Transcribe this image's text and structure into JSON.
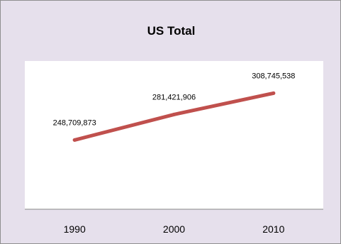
{
  "chart_data": {
    "type": "line",
    "title": "US Total",
    "categories": [
      "1990",
      "2000",
      "2010"
    ],
    "series": [
      {
        "values": [
          248709873,
          281421906,
          308745538
        ],
        "color": "#c0504d"
      }
    ],
    "data_labels": [
      "248,709,873",
      "281,421,906",
      "308,745,538"
    ],
    "ylim": [
      160000000,
      350000000
    ],
    "grid": false,
    "legend": "none",
    "background": "#e6e0ec",
    "plot_background": "#ffffff"
  }
}
